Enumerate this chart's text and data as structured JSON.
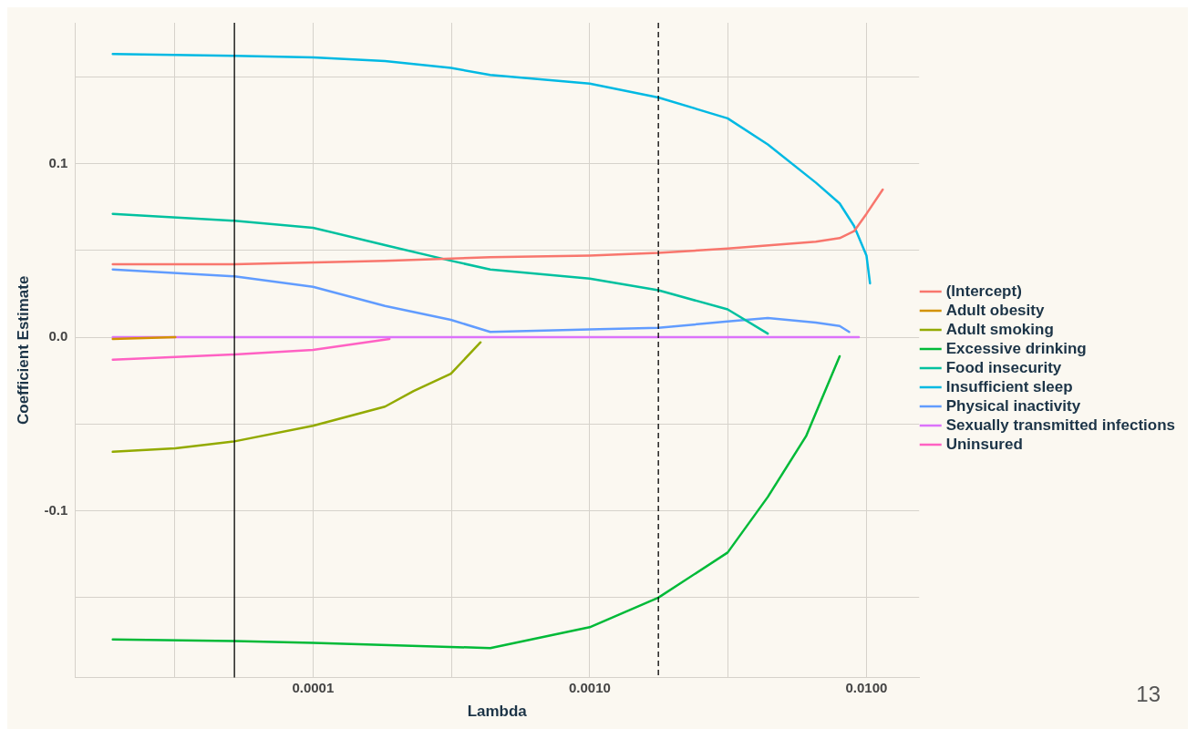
{
  "chart_data": {
    "type": "line",
    "xlabel": "Lambda",
    "ylabel": "Coefficient Estimate",
    "log": "x",
    "grid": true,
    "legend": "right",
    "marker": "none",
    "line_style": "solid",
    "xlim": [
      1.38e-05,
      0.0155
    ],
    "ylim": [
      -0.196,
      0.181
    ],
    "xticks": [
      {
        "value": 3.16e-05,
        "label": null
      },
      {
        "value": 0.0001,
        "label": "0.0001"
      },
      {
        "value": 0.000316,
        "label": null
      },
      {
        "value": 0.001,
        "label": "0.0010"
      },
      {
        "value": 0.00316,
        "label": null
      },
      {
        "value": 0.01,
        "label": "0.0100"
      }
    ],
    "yticks": [
      {
        "value": -0.15,
        "label": null
      },
      {
        "value": -0.1,
        "label": "-0.1"
      },
      {
        "value": -0.05,
        "label": null
      },
      {
        "value": 0,
        "label": "0.0"
      },
      {
        "value": 0.05,
        "label": null
      },
      {
        "value": 0.1,
        "label": "0.1"
      },
      {
        "value": 0.15,
        "label": null
      }
    ],
    "ref_lines": [
      {
        "axis": "x",
        "value": 5.2e-05,
        "label": null,
        "color": "#000000",
        "line_style": "solid"
      },
      {
        "axis": "x",
        "value": 0.00177,
        "label": null,
        "color": "#000000",
        "line_style": "dashed"
      }
    ],
    "annotations": [
      "13"
    ],
    "series": [
      {
        "name": "(Intercept)",
        "color": "#f8766d",
        "x": [
          1.89e-05,
          5.2e-05,
          0.000182,
          0.000437,
          0.001,
          0.00177,
          0.00315,
          0.00656,
          0.008,
          0.00902,
          0.01,
          0.01145
        ],
        "values": [
          0.042,
          0.042,
          0.044,
          0.046,
          0.047,
          0.0485,
          0.051,
          0.055,
          0.057,
          0.061,
          0.071,
          0.085
        ]
      },
      {
        "name": "Adult obesity",
        "color": "#d39200",
        "x": [
          1.89e-05,
          3.18e-05
        ],
        "values": [
          -0.001,
          0
        ]
      },
      {
        "name": "Adult smoking",
        "color": "#93aa00",
        "x": [
          1.89e-05,
          3.18e-05,
          5.2e-05,
          0.0001,
          0.000182,
          0.000231,
          0.000315,
          0.000403
        ],
        "values": [
          -0.066,
          -0.064,
          -0.06,
          -0.051,
          -0.04,
          -0.031,
          -0.021,
          -0.003
        ]
      },
      {
        "name": "Excessive drinking",
        "color": "#00ba38",
        "x": [
          1.89e-05,
          5.2e-05,
          0.0001,
          0.000437,
          0.001,
          0.00177,
          0.00315,
          0.0044,
          0.00605,
          0.008
        ],
        "values": [
          -0.174,
          -0.175,
          -0.176,
          -0.179,
          -0.167,
          -0.15,
          -0.124,
          -0.092,
          -0.057,
          -0.011
        ]
      },
      {
        "name": "Food insecurity",
        "color": "#00c19f",
        "x": [
          1.89e-05,
          5.2e-05,
          0.0001,
          0.000182,
          0.000315,
          0.000437,
          0.001,
          0.00177,
          0.00315,
          0.0044
        ],
        "values": [
          0.071,
          0.067,
          0.063,
          0.053,
          0.044,
          0.039,
          0.0337,
          0.027,
          0.016,
          0.002
        ]
      },
      {
        "name": "Insufficient sleep",
        "color": "#00b9e3",
        "x": [
          1.89e-05,
          5.2e-05,
          0.0001,
          0.000182,
          0.000315,
          0.000437,
          0.001,
          0.00177,
          0.00315,
          0.0044,
          0.00656,
          0.008,
          0.00902,
          0.01,
          0.0103
        ],
        "values": [
          0.163,
          0.162,
          0.161,
          0.159,
          0.155,
          0.151,
          0.146,
          0.138,
          0.126,
          0.111,
          0.089,
          0.077,
          0.064,
          0.047,
          0.031
        ]
      },
      {
        "name": "Physical inactivity",
        "color": "#619cff",
        "x": [
          1.89e-05,
          5.2e-05,
          0.0001,
          0.000182,
          0.000315,
          0.000437,
          0.001,
          0.00177,
          0.00315,
          0.0044,
          0.00656,
          0.008,
          0.00866
        ],
        "values": [
          0.039,
          0.035,
          0.029,
          0.018,
          0.01,
          0.003,
          0.0045,
          0.0054,
          0.009,
          0.011,
          0.0084,
          0.0064,
          0.003
        ]
      },
      {
        "name": "Sexually transmitted infections",
        "color": "#db72fb",
        "x": [
          1.89e-05,
          0.00938
        ],
        "values": [
          0,
          0
        ]
      },
      {
        "name": "Uninsured",
        "color": "#ff61c3",
        "x": [
          1.89e-05,
          5.2e-05,
          0.0001,
          0.000189
        ],
        "values": [
          -0.013,
          -0.01,
          -0.0074,
          -0.001
        ]
      }
    ]
  }
}
